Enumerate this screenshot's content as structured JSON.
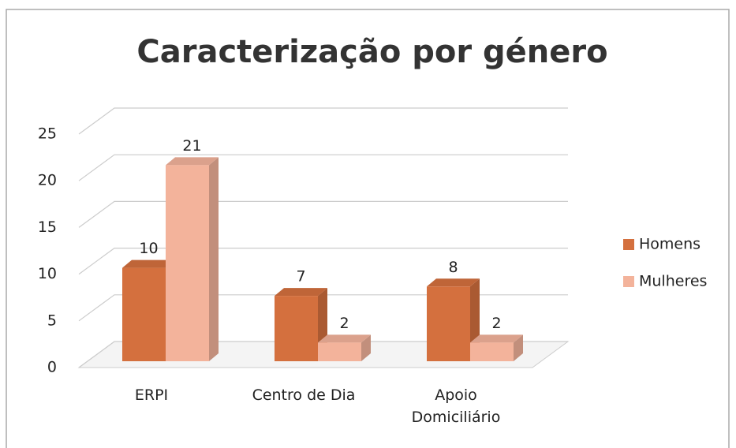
{
  "chart_data": {
    "type": "bar3d",
    "title": "Caracterização por género",
    "categories": [
      "ERPI",
      "Centro de Dia",
      "Apoio Domiciliário"
    ],
    "series": [
      {
        "name": "Homens",
        "color": "#d4703e",
        "values": [
          10,
          7,
          8
        ]
      },
      {
        "name": "Mulheres",
        "color": "#f3b39b",
        "values": [
          21,
          2,
          2
        ]
      }
    ],
    "ylim": [
      0,
      25
    ],
    "yticks": [
      0,
      5,
      10,
      15,
      20,
      25
    ],
    "grid": true,
    "legend": "right"
  }
}
